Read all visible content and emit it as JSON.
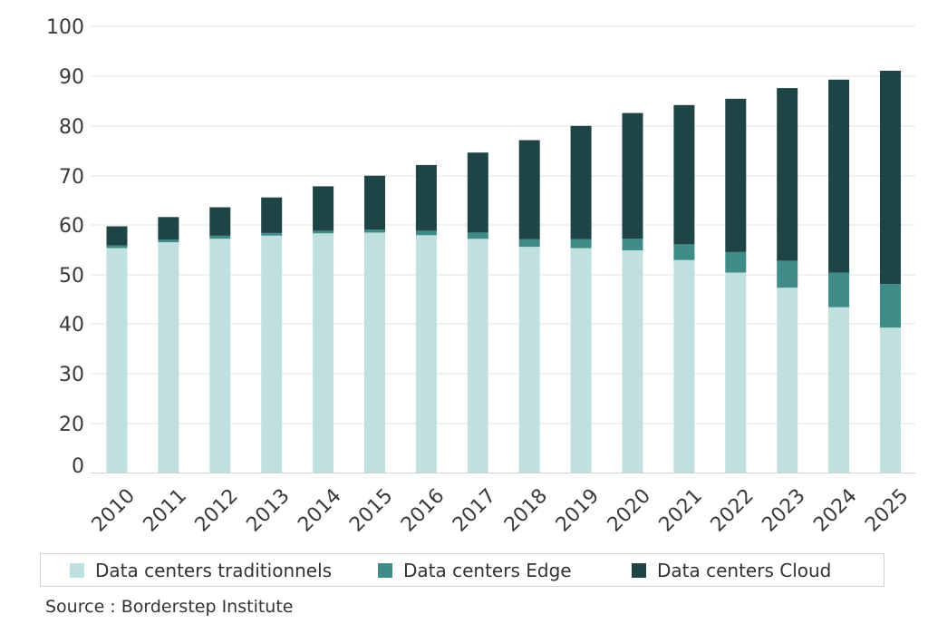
{
  "colors": {
    "traditionnels": "#bfe0de",
    "edge": "#3f8b88",
    "cloud": "#1f4446",
    "grid": "#e3e3e3",
    "axis": "#d0d0d0",
    "text": "#3a3a3a"
  },
  "chart_data": {
    "type": "bar",
    "stacked": true,
    "categories": [
      "2010",
      "2011",
      "2012",
      "2013",
      "2014",
      "2015",
      "2016",
      "2017",
      "2018",
      "2019",
      "2020",
      "2021",
      "2022",
      "2023",
      "2024",
      "2025"
    ],
    "series": [
      {
        "name": "Data centers traditionnels",
        "values": [
          50.5,
          51.8,
          52.6,
          53.3,
          53.8,
          54.0,
          53.4,
          52.6,
          50.8,
          50.5,
          50.0,
          47.8,
          45.0,
          41.6,
          37.2,
          32.6
        ]
      },
      {
        "name": "Data centers Edge",
        "values": [
          0.6,
          0.6,
          0.7,
          0.6,
          0.6,
          0.7,
          1.0,
          1.4,
          1.7,
          2.0,
          2.6,
          3.6,
          4.6,
          6.0,
          7.8,
          9.8
        ]
      },
      {
        "name": "Data centers Cloud",
        "values": [
          4.3,
          5.1,
          6.4,
          8.0,
          10.0,
          12.1,
          14.8,
          18.0,
          22.3,
          25.5,
          28.3,
          31.3,
          34.5,
          38.9,
          43.4,
          48.0
        ]
      }
    ],
    "yticks": [
      "0",
      "20",
      "30",
      "40",
      "50",
      "60",
      "70",
      "80",
      "90",
      "100"
    ],
    "ylim": [
      0,
      100
    ],
    "grid": true,
    "legend_position": "bottom"
  },
  "source": "Source : Borderstep Institute"
}
